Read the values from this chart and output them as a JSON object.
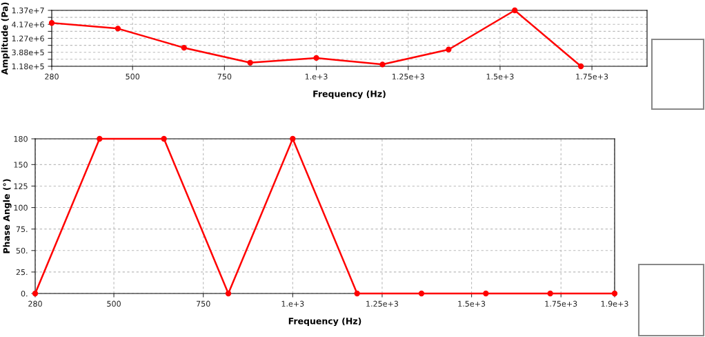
{
  "chart_data": [
    {
      "type": "line",
      "xlabel": "Frequency (Hz)",
      "ylabel": "Amplitude (Pa)",
      "x": [
        280,
        460,
        640,
        820,
        1000,
        1180,
        1360,
        1540,
        1720
      ],
      "series": [
        {
          "color": "#ff0000",
          "values": [
            4700000,
            2920000,
            570000,
            160000,
            240000,
            138000,
            490000,
            13700000,
            118000
          ]
        }
      ],
      "log": "y",
      "xlim": [
        280,
        1900
      ],
      "ylim": [
        118000,
        13700000
      ],
      "xticks": [
        280,
        500,
        750,
        {
          "value": 1000,
          "label": "1.e+3"
        },
        {
          "value": 1250,
          "label": "1.25e+3"
        },
        {
          "value": 1500,
          "label": "1.5e+3"
        },
        {
          "value": 1750,
          "label": "1.75e+3"
        }
      ],
      "yticks": [
        {
          "value": 118000,
          "label": "1.18e+5"
        },
        {
          "value": 215000,
          "label": null
        },
        {
          "value": 388000,
          "label": "3.88e+5"
        },
        {
          "value": 702000,
          "label": null
        },
        {
          "value": 1270000,
          "label": "1.27e+6"
        },
        {
          "value": 2300000,
          "label": null
        },
        {
          "value": 4170000,
          "label": "4.17e+6"
        },
        {
          "value": 7560000,
          "label": null
        },
        {
          "value": 13700000,
          "label": "1.37e+7"
        }
      ],
      "grid": true,
      "marker": "circle",
      "line_style": "solid"
    },
    {
      "type": "line",
      "xlabel": "Frequency (Hz)",
      "ylabel": "Phase Angle (°)",
      "x": [
        280,
        460,
        640,
        820,
        1000,
        1180,
        1360,
        1540,
        1720,
        1900
      ],
      "series": [
        {
          "color": "#ff0000",
          "values": [
            0,
            180,
            180,
            0,
            180,
            0,
            0,
            0,
            0,
            0
          ]
        }
      ],
      "xlim": [
        280,
        1900
      ],
      "ylim": [
        0,
        180
      ],
      "xticks": [
        280,
        500,
        750,
        {
          "value": 1000,
          "label": "1.e+3"
        },
        {
          "value": 1250,
          "label": "1.25e+3"
        },
        {
          "value": 1500,
          "label": "1.5e+3"
        },
        {
          "value": 1750,
          "label": "1.75e+3"
        },
        {
          "value": 1900,
          "label": "1.9e+3"
        }
      ],
      "yticks": [
        {
          "value": 0,
          "label": "0."
        },
        {
          "value": 25,
          "label": "25."
        },
        {
          "value": 50,
          "label": "50."
        },
        {
          "value": 75,
          "label": "75."
        },
        100,
        125,
        150,
        180
      ],
      "grid": true,
      "marker": "circle",
      "line_style": "solid"
    }
  ]
}
